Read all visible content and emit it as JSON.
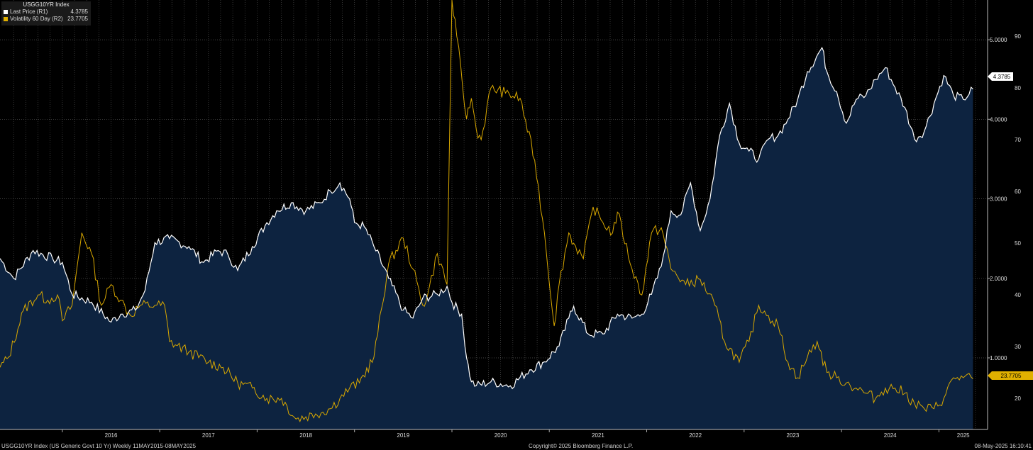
{
  "legend": {
    "title": "USGG10YR Index",
    "items": [
      {
        "label": "Last Price  (R1)",
        "value": "4.3785",
        "color": "#ffffff"
      },
      {
        "label": "Volatility 60 Day  (R2)",
        "value": "23.7705",
        "color": "#e0b000"
      }
    ]
  },
  "footer": {
    "left": "USGG10YR Index (US Generic Govt 10 Yr)  Weekly 11MAY2015-08MAY2025",
    "center": "Copyright© 2025 Bloomberg Finance L.P.",
    "right": "08-May-2025 16:10:41"
  },
  "colors": {
    "background": "#000000",
    "area_fill": "#0d2340",
    "price_line": "#ffffff",
    "vol_line": "#d9a800",
    "grid": "#5a5a5a"
  },
  "chart_data": {
    "type": "line",
    "x_axis": {
      "labels": [
        "2016",
        "2017",
        "2018",
        "2019",
        "2020",
        "2021",
        "2022",
        "2023",
        "2024",
        "2025"
      ]
    },
    "axis_r1": {
      "ticks": [
        "5.0000",
        "4.0000",
        "3.0000",
        "2.0000",
        "1.0000"
      ],
      "range": [
        0.1,
        5.5
      ],
      "grid": true
    },
    "axis_r2": {
      "ticks": [
        "90",
        "80",
        "70",
        "60",
        "50",
        "40",
        "30",
        "20"
      ],
      "range": [
        14,
        97
      ]
    },
    "last_price_tag": "4.3785",
    "vol_tag": "23.7705",
    "series": [
      {
        "name": "Last Price",
        "axis": "R1",
        "style": "area",
        "x": [
          2015.36,
          2015.5,
          2015.7,
          2015.9,
          2016.0,
          2016.1,
          2016.3,
          2016.5,
          2016.6,
          2016.75,
          2016.85,
          2016.95,
          2017.1,
          2017.3,
          2017.45,
          2017.6,
          2017.7,
          2017.8,
          2017.95,
          2018.1,
          2018.2,
          2018.35,
          2018.5,
          2018.65,
          2018.75,
          2018.85,
          2018.95,
          2019.0,
          2019.1,
          2019.2,
          2019.35,
          2019.5,
          2019.6,
          2019.7,
          2019.85,
          2019.95,
          2020.0,
          2020.1,
          2020.15,
          2020.2,
          2020.25,
          2020.4,
          2020.6,
          2020.8,
          2020.95,
          2021.1,
          2021.2,
          2021.25,
          2021.4,
          2021.55,
          2021.7,
          2021.85,
          2021.95,
          2022.05,
          2022.15,
          2022.25,
          2022.35,
          2022.45,
          2022.55,
          2022.65,
          2022.75,
          2022.85,
          2022.95,
          2023.05,
          2023.15,
          2023.25,
          2023.35,
          2023.45,
          2023.55,
          2023.65,
          2023.8,
          2023.85,
          2023.95,
          2024.05,
          2024.15,
          2024.25,
          2024.35,
          2024.45,
          2024.55,
          2024.65,
          2024.75,
          2024.85,
          2024.95,
          2025.05,
          2025.15,
          2025.25,
          2025.35
        ],
        "values": [
          2.25,
          2.0,
          2.35,
          2.25,
          2.2,
          1.8,
          1.7,
          1.45,
          1.55,
          1.6,
          1.85,
          2.45,
          2.5,
          2.4,
          2.2,
          2.35,
          2.3,
          2.1,
          2.4,
          2.7,
          2.85,
          2.95,
          2.85,
          2.95,
          3.1,
          3.2,
          3.0,
          2.7,
          2.65,
          2.4,
          2.0,
          1.6,
          1.5,
          1.75,
          1.8,
          1.9,
          1.7,
          1.55,
          1.0,
          0.7,
          0.65,
          0.7,
          0.65,
          0.85,
          0.95,
          1.15,
          1.5,
          1.65,
          1.3,
          1.3,
          1.55,
          1.5,
          1.55,
          1.8,
          2.15,
          2.85,
          2.8,
          3.2,
          2.6,
          3.0,
          3.8,
          4.2,
          3.7,
          3.6,
          3.5,
          3.75,
          3.8,
          4.0,
          4.25,
          4.6,
          4.9,
          4.6,
          4.35,
          3.95,
          4.25,
          4.3,
          4.5,
          4.65,
          4.4,
          4.15,
          3.75,
          3.85,
          4.2,
          4.55,
          4.3,
          4.25,
          4.38
        ]
      },
      {
        "name": "Volatility 60 Day",
        "axis": "R2",
        "style": "line",
        "x": [
          2015.36,
          2015.45,
          2015.6,
          2015.75,
          2015.85,
          2015.95,
          2016.0,
          2016.1,
          2016.2,
          2016.3,
          2016.4,
          2016.5,
          2016.6,
          2016.7,
          2016.8,
          2016.95,
          2017.05,
          2017.1,
          2017.3,
          2017.5,
          2017.65,
          2017.8,
          2017.95,
          2018.1,
          2018.25,
          2018.4,
          2018.6,
          2018.75,
          2018.85,
          2018.95,
          2019.05,
          2019.2,
          2019.35,
          2019.5,
          2019.6,
          2019.7,
          2019.75,
          2019.85,
          2019.95,
          2020.0,
          2020.05,
          2020.15,
          2020.2,
          2020.25,
          2020.3,
          2020.4,
          2020.55,
          2020.7,
          2020.85,
          2020.95,
          2021.05,
          2021.1,
          2021.2,
          2021.25,
          2021.35,
          2021.45,
          2021.55,
          2021.65,
          2021.7,
          2021.85,
          2021.95,
          2022.05,
          2022.15,
          2022.25,
          2022.4,
          2022.55,
          2022.7,
          2022.8,
          2022.95,
          2023.05,
          2023.15,
          2023.25,
          2023.35,
          2023.45,
          2023.55,
          2023.65,
          2023.75,
          2023.85,
          2023.95,
          2024.05,
          2024.15,
          2024.25,
          2024.35,
          2024.45,
          2024.55,
          2024.65,
          2024.75,
          2024.85,
          2024.95,
          2025.05,
          2025.15,
          2025.25,
          2025.35
        ],
        "values": [
          26,
          28,
          37,
          40,
          39,
          40,
          35,
          38,
          52,
          48,
          38,
          42,
          39,
          36,
          38,
          38,
          38,
          31,
          29,
          27,
          26,
          23,
          22,
          20,
          20,
          16,
          17,
          18,
          20,
          22,
          23,
          28,
          46,
          51,
          45,
          38,
          40,
          48,
          42,
          97,
          90,
          74,
          78,
          72,
          70,
          80,
          79,
          78,
          66,
          52,
          34,
          42,
          52,
          50,
          47,
          57,
          54,
          52,
          56,
          45,
          40,
          52,
          53,
          45,
          42,
          43,
          38,
          31,
          27,
          31,
          38,
          36,
          34,
          27,
          24,
          28,
          31,
          25,
          24,
          23,
          22,
          21,
          20,
          22,
          22,
          21,
          19,
          18,
          18,
          20,
          24,
          24,
          23.77
        ]
      }
    ]
  }
}
